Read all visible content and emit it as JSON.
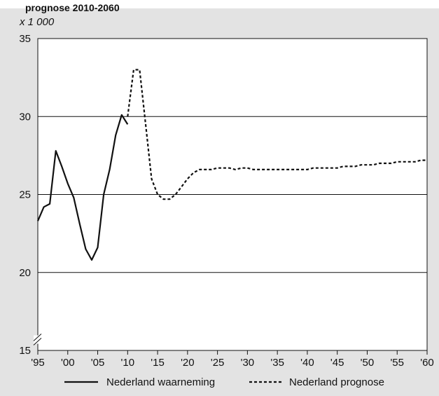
{
  "chart_data": {
    "type": "line",
    "title": "prognose 2010-2060",
    "unit_label": "x 1 000",
    "xlim": [
      1995,
      2060
    ],
    "ylim": [
      15,
      35
    ],
    "y_ticks": [
      15,
      20,
      25,
      30,
      35
    ],
    "y_tick_labels": [
      "15",
      "20",
      "25",
      "30",
      "35"
    ],
    "x_ticks": [
      1995,
      2000,
      2005,
      2010,
      2015,
      2020,
      2025,
      2030,
      2035,
      2040,
      2045,
      2050,
      2055,
      2060
    ],
    "x_tick_labels": [
      "'95",
      "'00",
      "'05",
      "'10",
      "'15",
      "'20",
      "'25",
      "'30",
      "'35",
      "'40",
      "'45",
      "'50",
      "'55",
      "'60"
    ],
    "grid": "horizontal",
    "axis_break": true,
    "legend_position": "bottom",
    "series": [
      {
        "name": "Nederland waarneming",
        "style": "solid",
        "color": "#111111",
        "x": [
          1995,
          1996,
          1997,
          1998,
          1999,
          2000,
          2001,
          2002,
          2003,
          2004,
          2005,
          2006,
          2007,
          2008,
          2009,
          2010
        ],
        "y": [
          23.3,
          24.2,
          24.4,
          27.8,
          26.8,
          25.7,
          24.8,
          23.1,
          21.5,
          20.8,
          21.6,
          25.0,
          26.6,
          28.8,
          30.1,
          29.5
        ]
      },
      {
        "name": "Nederland prognose",
        "style": "dashed",
        "color": "#111111",
        "x": [
          2010,
          2011,
          2012,
          2013,
          2014,
          2015,
          2016,
          2017,
          2018,
          2019,
          2020,
          2021,
          2022,
          2023,
          2024,
          2025,
          2026,
          2027,
          2028,
          2029,
          2030,
          2031,
          2032,
          2033,
          2034,
          2035,
          2036,
          2037,
          2038,
          2039,
          2040,
          2041,
          2042,
          2043,
          2044,
          2045,
          2046,
          2047,
          2048,
          2049,
          2050,
          2051,
          2052,
          2053,
          2054,
          2055,
          2056,
          2057,
          2058,
          2059,
          2060
        ],
        "y": [
          30.0,
          33.0,
          33.0,
          29.5,
          26.0,
          25.0,
          24.7,
          24.7,
          25.0,
          25.5,
          26.0,
          26.4,
          26.6,
          26.6,
          26.6,
          26.7,
          26.7,
          26.7,
          26.6,
          26.7,
          26.7,
          26.6,
          26.6,
          26.6,
          26.6,
          26.6,
          26.6,
          26.6,
          26.6,
          26.6,
          26.6,
          26.7,
          26.7,
          26.7,
          26.7,
          26.7,
          26.8,
          26.8,
          26.8,
          26.9,
          26.9,
          26.9,
          27.0,
          27.0,
          27.0,
          27.1,
          27.1,
          27.1,
          27.1,
          27.2,
          27.2
        ]
      }
    ]
  }
}
